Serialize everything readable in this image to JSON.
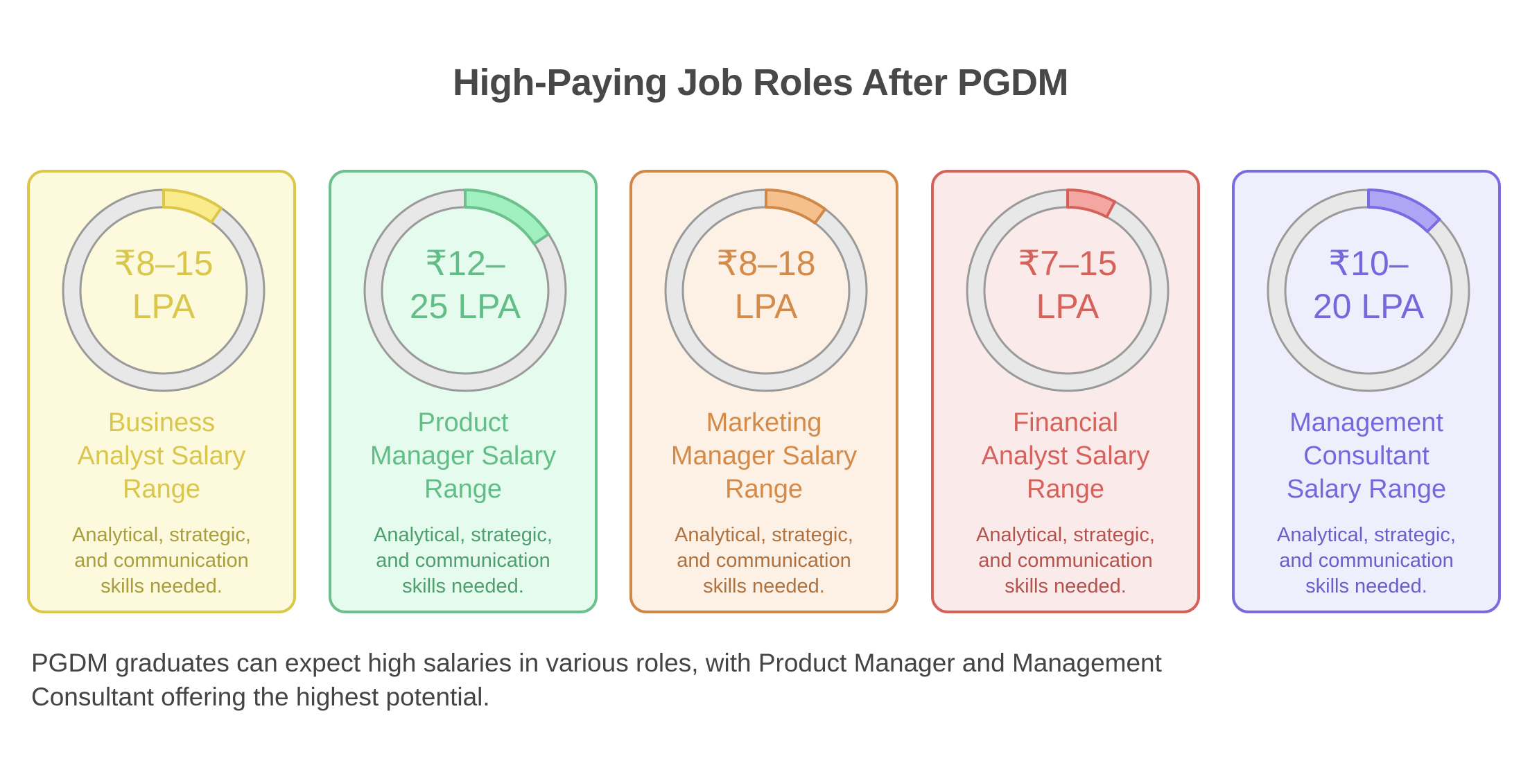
{
  "title": "High-Paying Job Roles After PGDM",
  "cards": [
    {
      "range_lines": [
        "₹8–15",
        "LPA"
      ],
      "heading_lines": [
        "Business",
        "Analyst Salary",
        "Range"
      ],
      "body_lines": [
        "Analytical, strategic,",
        "and communication",
        "skills needed."
      ],
      "colors": {
        "border": "#dcc74a",
        "background": "#fdf9dc",
        "accent": "#d9c64c",
        "segment_fill": "#faec8a",
        "body_text": "#a89e3e"
      },
      "segment_degrees": 35
    },
    {
      "range_lines": [
        "₹12–",
        "25 LPA"
      ],
      "heading_lines": [
        "Product",
        "Manager Salary",
        "Range"
      ],
      "body_lines": [
        "Analytical, strategic,",
        "and communication",
        "skills needed."
      ],
      "colors": {
        "border": "#6cc08c",
        "background": "#e4fbee",
        "accent": "#62bd86",
        "segment_fill": "#a0efbf",
        "body_text": "#4f9e6e"
      },
      "segment_degrees": 56
    },
    {
      "range_lines": [
        "₹8–18",
        "LPA"
      ],
      "heading_lines": [
        "Marketing",
        "Manager Salary",
        "Range"
      ],
      "body_lines": [
        "Analytical, strategic,",
        "and communication",
        "skills needed."
      ],
      "colors": {
        "border": "#cf8847",
        "background": "#fdf0e4",
        "accent": "#d48a48",
        "segment_fill": "#f5c08c",
        "body_text": "#ae7240"
      },
      "segment_degrees": 36
    },
    {
      "range_lines": [
        "₹7–15",
        "LPA"
      ],
      "heading_lines": [
        "Financial",
        "Analyst Salary",
        "Range"
      ],
      "body_lines": [
        "Analytical, strategic,",
        "and communication",
        "skills needed."
      ],
      "colors": {
        "border": "#d4625a",
        "background": "#fbeaea",
        "accent": "#d5625b",
        "segment_fill": "#f4a6a2",
        "body_text": "#b5524c"
      },
      "segment_degrees": 28
    },
    {
      "range_lines": [
        "₹10–",
        "20 LPA"
      ],
      "heading_lines": [
        "Management",
        "Consultant",
        "Salary Range"
      ],
      "body_lines": [
        "Analytical, strategic,",
        "and communication",
        "skills needed."
      ],
      "colors": {
        "border": "#7a6ce0",
        "background": "#efeefc",
        "accent": "#7568dd",
        "segment_fill": "#aea6f5",
        "body_text": "#6a5ecc"
      },
      "segment_degrees": 45
    }
  ],
  "footer": {
    "lines": [
      "PGDM graduates can expect high salaries in various roles, with Product Manager and Management",
      "Consultant offering the highest potential."
    ]
  },
  "ring_colors": {
    "track_fill": "#e8e8e8",
    "track_stroke": "#9a9a9a"
  }
}
